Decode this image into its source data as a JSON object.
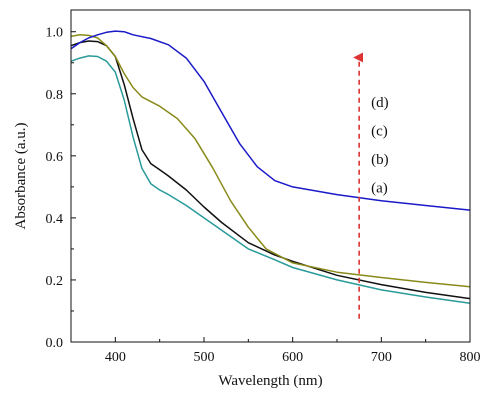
{
  "chart_data": {
    "type": "line",
    "title": "",
    "xlabel": "Wavelength (nm)",
    "ylabel": "Absorbance (a.u.)",
    "xlim": [
      350,
      800
    ],
    "ylim": [
      0.0,
      1.07
    ],
    "xticks": [
      400,
      500,
      600,
      700,
      800
    ],
    "xtick_labels": [
      "400",
      "500",
      "600",
      "700",
      "800"
    ],
    "yticks": [
      0.0,
      0.2,
      0.4,
      0.6,
      0.8,
      1.0
    ],
    "ytick_labels": [
      "0.0",
      "0.2",
      "0.4",
      "0.6",
      "0.8",
      "1.0"
    ],
    "grid": false,
    "legend": false,
    "series": [
      {
        "color": "#2a9a9a",
        "points": [
          [
            350,
            0.905
          ],
          [
            360,
            0.915
          ],
          [
            370,
            0.922
          ],
          [
            380,
            0.92
          ],
          [
            390,
            0.905
          ],
          [
            400,
            0.87
          ],
          [
            410,
            0.78
          ],
          [
            420,
            0.66
          ],
          [
            430,
            0.56
          ],
          [
            440,
            0.51
          ],
          [
            450,
            0.49
          ],
          [
            460,
            0.475
          ],
          [
            480,
            0.44
          ],
          [
            500,
            0.4
          ],
          [
            520,
            0.36
          ],
          [
            550,
            0.3
          ],
          [
            580,
            0.265
          ],
          [
            600,
            0.24
          ],
          [
            650,
            0.2
          ],
          [
            700,
            0.168
          ],
          [
            750,
            0.145
          ],
          [
            800,
            0.125
          ]
        ]
      },
      {
        "color": "#111111",
        "points": [
          [
            350,
            0.955
          ],
          [
            360,
            0.965
          ],
          [
            370,
            0.97
          ],
          [
            380,
            0.968
          ],
          [
            390,
            0.955
          ],
          [
            400,
            0.92
          ],
          [
            410,
            0.83
          ],
          [
            420,
            0.72
          ],
          [
            430,
            0.62
          ],
          [
            440,
            0.575
          ],
          [
            450,
            0.555
          ],
          [
            460,
            0.535
          ],
          [
            480,
            0.49
          ],
          [
            500,
            0.435
          ],
          [
            520,
            0.385
          ],
          [
            550,
            0.32
          ],
          [
            580,
            0.28
          ],
          [
            600,
            0.26
          ],
          [
            650,
            0.215
          ],
          [
            700,
            0.185
          ],
          [
            750,
            0.16
          ],
          [
            800,
            0.14
          ]
        ]
      },
      {
        "color": "#8a8a1a",
        "points": [
          [
            350,
            0.985
          ],
          [
            360,
            0.99
          ],
          [
            370,
            0.988
          ],
          [
            380,
            0.98
          ],
          [
            390,
            0.955
          ],
          [
            400,
            0.92
          ],
          [
            410,
            0.865
          ],
          [
            420,
            0.82
          ],
          [
            430,
            0.79
          ],
          [
            450,
            0.76
          ],
          [
            470,
            0.72
          ],
          [
            490,
            0.655
          ],
          [
            510,
            0.56
          ],
          [
            530,
            0.455
          ],
          [
            550,
            0.37
          ],
          [
            570,
            0.3
          ],
          [
            600,
            0.255
          ],
          [
            650,
            0.225
          ],
          [
            700,
            0.208
          ],
          [
            750,
            0.192
          ],
          [
            800,
            0.178
          ]
        ]
      },
      {
        "color": "#1a1ac8",
        "points": [
          [
            350,
            0.945
          ],
          [
            360,
            0.965
          ],
          [
            370,
            0.98
          ],
          [
            380,
            0.99
          ],
          [
            390,
            0.998
          ],
          [
            400,
            1.002
          ],
          [
            410,
            1.0
          ],
          [
            420,
            0.99
          ],
          [
            440,
            0.978
          ],
          [
            460,
            0.958
          ],
          [
            480,
            0.915
          ],
          [
            500,
            0.84
          ],
          [
            520,
            0.74
          ],
          [
            540,
            0.64
          ],
          [
            560,
            0.565
          ],
          [
            580,
            0.52
          ],
          [
            600,
            0.5
          ],
          [
            650,
            0.475
          ],
          [
            700,
            0.455
          ],
          [
            750,
            0.44
          ],
          [
            800,
            0.425
          ]
        ]
      }
    ],
    "annotations": {
      "labels": [
        "(d)",
        "(c)",
        "(b)",
        "(a)"
      ],
      "arrow": {
        "x": 675,
        "y_start": 0.075,
        "y_end": 0.93,
        "color": "#dd3333",
        "style": "dashed"
      }
    }
  }
}
